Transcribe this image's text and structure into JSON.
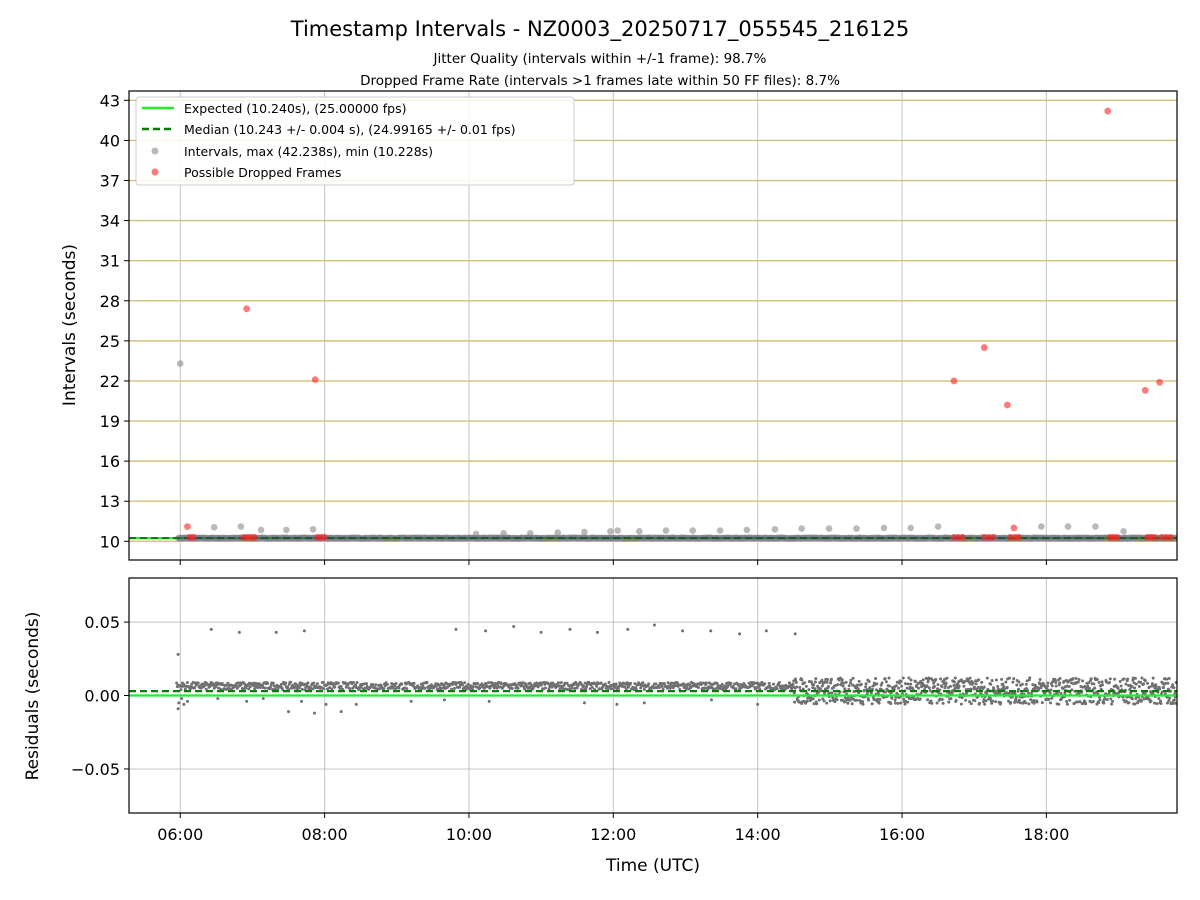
{
  "chart_data": [
    {
      "type": "scatter",
      "title": "Timestamp Intervals - NZ0003_20250717_055545_216125",
      "subtitle_lines": [
        "Jitter Quality (intervals within +/-1 frame): 98.7%",
        "Dropped Frame Rate (intervals >1 frames late within 50 FF files): 8.7%"
      ],
      "xlabel": "",
      "ylabel": "Intervals (seconds)",
      "x_unit": "hours UTC",
      "xlim": [
        5.29,
        19.81
      ],
      "ylim": [
        8.6,
        43.7
      ],
      "yticks": [
        10,
        13,
        16,
        19,
        22,
        25,
        28,
        31,
        34,
        37,
        40,
        43
      ],
      "xticks": [
        6,
        8,
        10,
        12,
        14,
        16,
        18
      ],
      "grid": true,
      "legend_position": "top-left",
      "colors": {
        "expected": "#22ee22",
        "median": "#007f00",
        "intervals": "#808080",
        "dropped": "#ff2222",
        "hgrid": "#d2c07a",
        "vgrid": "#b0b0b0"
      },
      "series": [
        {
          "name": "Expected (10.240s), (25.00000 fps)",
          "kind": "hline",
          "value": 10.24
        },
        {
          "name": "Median (10.243 +/- 0.004 s), (24.99165 +/- 0.01 fps)",
          "kind": "hline-dashed",
          "value": 10.243
        },
        {
          "name": "Intervals, max (42.238s), min (10.228s)",
          "kind": "scatter",
          "base_value": 10.24,
          "band": [
            5.97,
            19.8
          ],
          "points": [
            [
              6.0,
              23.3
            ],
            [
              6.47,
              11.05
            ],
            [
              6.84,
              11.1
            ],
            [
              7.12,
              10.85
            ],
            [
              7.47,
              10.85
            ],
            [
              7.84,
              10.9
            ],
            [
              10.1,
              10.55
            ],
            [
              10.48,
              10.6
            ],
            [
              10.85,
              10.6
            ],
            [
              11.23,
              10.65
            ],
            [
              11.6,
              10.7
            ],
            [
              11.96,
              10.75
            ],
            [
              12.06,
              10.8
            ],
            [
              12.36,
              10.75
            ],
            [
              12.73,
              10.8
            ],
            [
              13.1,
              10.8
            ],
            [
              13.48,
              10.8
            ],
            [
              13.85,
              10.85
            ],
            [
              14.24,
              10.9
            ],
            [
              14.61,
              10.95
            ],
            [
              14.99,
              10.95
            ],
            [
              15.37,
              10.95
            ],
            [
              15.75,
              11.0
            ],
            [
              16.12,
              11.0
            ],
            [
              16.5,
              11.1
            ],
            [
              17.93,
              11.1
            ],
            [
              18.3,
              11.1
            ],
            [
              18.68,
              11.1
            ],
            [
              19.07,
              10.75
            ]
          ]
        },
        {
          "name": "Possible Dropped Frames",
          "kind": "scatter",
          "points": [
            [
              6.1,
              11.1
            ],
            [
              6.13,
              10.3
            ],
            [
              6.18,
              10.3
            ],
            [
              6.88,
              10.3
            ],
            [
              6.93,
              10.3
            ],
            [
              6.98,
              10.3
            ],
            [
              7.03,
              10.3
            ],
            [
              6.92,
              27.4
            ],
            [
              7.87,
              22.1
            ],
            [
              7.9,
              10.3
            ],
            [
              7.95,
              10.3
            ],
            [
              8.0,
              10.3
            ],
            [
              16.72,
              22.0
            ],
            [
              16.72,
              10.3
            ],
            [
              16.78,
              10.3
            ],
            [
              16.84,
              10.3
            ],
            [
              17.14,
              24.5
            ],
            [
              17.14,
              10.3
            ],
            [
              17.2,
              10.3
            ],
            [
              17.26,
              10.3
            ],
            [
              17.46,
              20.2
            ],
            [
              17.5,
              10.3
            ],
            [
              17.55,
              11.0
            ],
            [
              17.57,
              10.3
            ],
            [
              17.62,
              10.3
            ],
            [
              18.85,
              42.2
            ],
            [
              18.88,
              10.3
            ],
            [
              18.93,
              10.3
            ],
            [
              18.98,
              10.3
            ],
            [
              19.37,
              21.3
            ],
            [
              19.4,
              10.3
            ],
            [
              19.45,
              10.3
            ],
            [
              19.5,
              10.3
            ],
            [
              19.57,
              21.9
            ],
            [
              19.6,
              10.3
            ],
            [
              19.66,
              10.3
            ],
            [
              19.72,
              10.3
            ]
          ]
        }
      ]
    },
    {
      "type": "scatter",
      "title": "",
      "xlabel": "Time (UTC)",
      "ylabel": "Residuals (seconds)",
      "x_unit": "hours UTC",
      "xlim": [
        5.29,
        19.81
      ],
      "ylim": [
        -0.08,
        0.08
      ],
      "yticks": [
        -0.05,
        0.0,
        0.05
      ],
      "ytick_labels": [
        "−0.05",
        "0.00",
        "0.05"
      ],
      "xticks": [
        6,
        8,
        10,
        12,
        14,
        16,
        18
      ],
      "xtick_labels": [
        "06:00",
        "08:00",
        "10:00",
        "12:00",
        "14:00",
        "16:00",
        "18:00"
      ],
      "grid": true,
      "colors": {
        "residuals": "#707070",
        "expected": "#22ee22",
        "median": "#007f00",
        "grid": "#b0b0b0"
      },
      "series": [
        {
          "name": "",
          "kind": "hline",
          "value": 0.0
        },
        {
          "name": "",
          "kind": "hline-dashed",
          "value": 0.003
        },
        {
          "name": "",
          "kind": "scatter",
          "band_segments": [
            [
              5.95,
              14.5,
              0.004,
              0.009
            ],
            [
              14.5,
              19.8,
              -0.006,
              0.012
            ]
          ],
          "points": [
            [
              5.97,
              0.028
            ],
            [
              6.43,
              0.045
            ],
            [
              6.82,
              0.043
            ],
            [
              7.33,
              0.043
            ],
            [
              7.72,
              0.044
            ],
            [
              9.82,
              0.045
            ],
            [
              10.23,
              0.044
            ],
            [
              10.62,
              0.047
            ],
            [
              11.0,
              0.043
            ],
            [
              11.4,
              0.045
            ],
            [
              11.78,
              0.043
            ],
            [
              12.2,
              0.045
            ],
            [
              12.57,
              0.048
            ],
            [
              12.96,
              0.044
            ],
            [
              13.35,
              0.044
            ],
            [
              13.75,
              0.042
            ],
            [
              14.12,
              0.044
            ],
            [
              14.52,
              0.042
            ],
            [
              5.97,
              -0.009
            ],
            [
              5.98,
              -0.005
            ],
            [
              6.02,
              -0.002
            ],
            [
              6.05,
              -0.006
            ],
            [
              6.1,
              -0.004
            ],
            [
              6.52,
              -0.002
            ],
            [
              6.92,
              -0.004
            ],
            [
              7.15,
              -0.002
            ],
            [
              7.5,
              -0.011
            ],
            [
              7.68,
              -0.004
            ],
            [
              7.86,
              -0.012
            ],
            [
              8.02,
              -0.006
            ],
            [
              8.23,
              -0.011
            ],
            [
              8.44,
              -0.006
            ],
            [
              9.2,
              -0.004
            ],
            [
              9.66,
              -0.003
            ],
            [
              10.28,
              -0.004
            ],
            [
              11.6,
              -0.005
            ],
            [
              12.05,
              -0.006
            ],
            [
              12.43,
              -0.005
            ],
            [
              13.36,
              -0.003
            ],
            [
              14.0,
              -0.006
            ]
          ]
        }
      ]
    }
  ]
}
